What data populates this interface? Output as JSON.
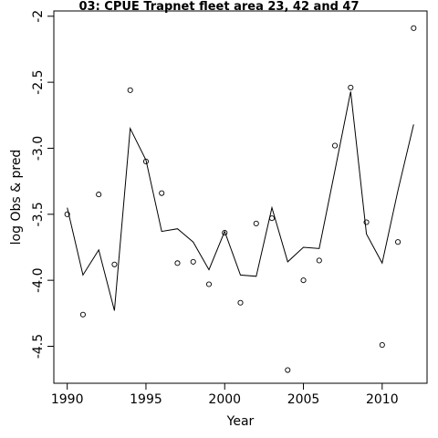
{
  "chart_data": {
    "type": "line",
    "title": "03: CPUE Trapnet fleet area 23, 42 and 47",
    "xlabel": "Year",
    "ylabel": "log Obs & pred",
    "xlim": [
      1989.15,
      2012.85
    ],
    "ylim": [
      -4.78,
      -1.96
    ],
    "x_ticks": [
      1990,
      1995,
      2000,
      2005,
      2010
    ],
    "y_ticks": [
      -4.5,
      -4.0,
      -3.5,
      -3.0,
      -2.5,
      -2.0
    ],
    "x_tick_labels": [
      "1990",
      "1995",
      "2000",
      "2005",
      "2010"
    ],
    "y_tick_labels": [
      "-4.5",
      "-4.0",
      "-3.5",
      "-3.0",
      "-2.5",
      "-2"
    ],
    "grid": false,
    "legend": "none",
    "series": [
      {
        "role": "observed",
        "style": "points",
        "x": [
          1990,
          1991,
          1992,
          1993,
          1994,
          1995,
          1996,
          1997,
          1998,
          1999,
          2000,
          2001,
          2002,
          2003,
          2004,
          2005,
          2006,
          2007,
          2008,
          2009,
          2010,
          2011,
          2012
        ],
        "y": [
          -3.5,
          -4.26,
          -3.35,
          -3.88,
          -2.56,
          -3.1,
          -3.34,
          -3.87,
          -3.86,
          -4.03,
          -3.64,
          -4.17,
          -3.57,
          -3.53,
          -4.68,
          -4.0,
          -3.85,
          -2.98,
          -2.54,
          -3.56,
          -4.49,
          -3.71,
          -2.09
        ]
      },
      {
        "role": "predicted",
        "style": "line",
        "x": [
          1990,
          1991,
          1992,
          1993,
          1994,
          1995,
          1996,
          1997,
          1998,
          1999,
          2000,
          2001,
          2002,
          2003,
          2004,
          2005,
          2006,
          2007,
          2008,
          2009,
          2010,
          2011,
          2012
        ],
        "y": [
          -3.45,
          -3.96,
          -3.77,
          -4.23,
          -2.85,
          -3.09,
          -3.63,
          -3.61,
          -3.71,
          -3.92,
          -3.63,
          -3.96,
          -3.97,
          -3.45,
          -3.86,
          -3.75,
          -3.76,
          -3.17,
          -2.57,
          -3.65,
          -3.87,
          -3.32,
          -2.82
        ]
      }
    ],
    "colors": {
      "points": "#000000",
      "line": "#000000",
      "axes": "#000000",
      "background": "#ffffff"
    }
  }
}
